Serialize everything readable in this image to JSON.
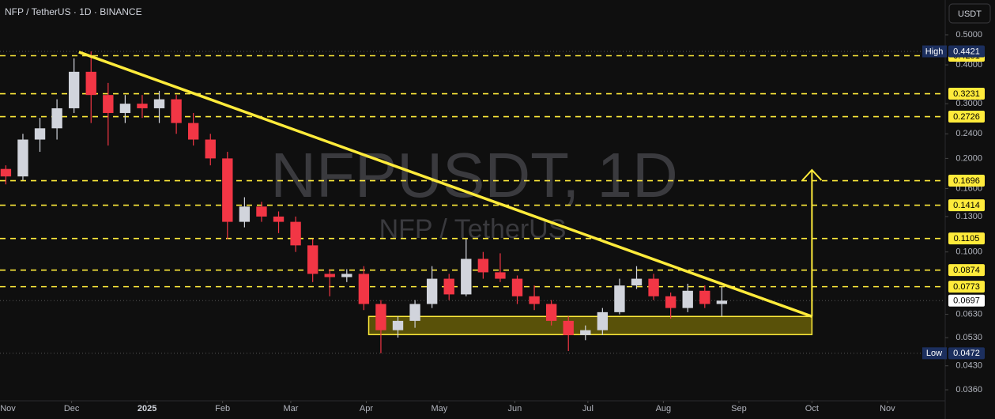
{
  "header": {
    "title": "NFP / TetherUS · 1D · BINANCE",
    "currency": "USDT"
  },
  "watermark": {
    "symbol": "NFPUSDT, 1D",
    "name": "NFP / TetherUS"
  },
  "chart_data": {
    "type": "candlestick",
    "log_scale": true,
    "up_color": "#d1d4dc",
    "down_color": "#f23645",
    "level_color": "#ffeb3b",
    "x": [
      3,
      10,
      17,
      24,
      31,
      38,
      45,
      52,
      59,
      66,
      73,
      80,
      87,
      94,
      101,
      108,
      115,
      122,
      129,
      136,
      143,
      150,
      157,
      164,
      171,
      178,
      185,
      192,
      199,
      206,
      213,
      220,
      227,
      234,
      241,
      248,
      255,
      262,
      269,
      276,
      283,
      290,
      297
    ],
    "open": [
      0.185,
      0.175,
      0.23,
      0.25,
      0.29,
      0.38,
      0.32,
      0.28,
      0.3,
      0.29,
      0.31,
      0.26,
      0.23,
      0.2,
      0.125,
      0.14,
      0.13,
      0.125,
      0.105,
      0.085,
      0.083,
      0.085,
      0.068,
      0.056,
      0.06,
      0.068,
      0.082,
      0.073,
      0.095,
      0.086,
      0.082,
      0.072,
      0.068,
      0.06,
      0.054,
      0.056,
      0.064,
      0.078,
      0.082,
      0.072,
      0.066,
      0.075,
      0.068
    ],
    "high": [
      0.19,
      0.24,
      0.27,
      0.31,
      0.42,
      0.4421,
      0.35,
      0.32,
      0.32,
      0.33,
      0.32,
      0.28,
      0.24,
      0.21,
      0.15,
      0.145,
      0.135,
      0.13,
      0.11,
      0.088,
      0.088,
      0.09,
      0.07,
      0.062,
      0.07,
      0.09,
      0.085,
      0.11,
      0.1,
      0.099,
      0.084,
      0.078,
      0.07,
      0.062,
      0.058,
      0.066,
      0.082,
      0.09,
      0.085,
      0.074,
      0.079,
      0.078,
      0.0773
    ],
    "low": [
      0.165,
      0.17,
      0.21,
      0.23,
      0.28,
      0.26,
      0.22,
      0.26,
      0.27,
      0.26,
      0.24,
      0.22,
      0.19,
      0.11,
      0.12,
      0.125,
      0.115,
      0.1,
      0.08,
      0.072,
      0.08,
      0.065,
      0.0472,
      0.053,
      0.057,
      0.066,
      0.07,
      0.072,
      0.082,
      0.08,
      0.068,
      0.065,
      0.058,
      0.048,
      0.052,
      0.054,
      0.063,
      0.076,
      0.07,
      0.061,
      0.064,
      0.066,
      0.062
    ],
    "close": [
      0.175,
      0.23,
      0.25,
      0.29,
      0.38,
      0.32,
      0.28,
      0.3,
      0.29,
      0.31,
      0.26,
      0.23,
      0.2,
      0.125,
      0.14,
      0.13,
      0.125,
      0.105,
      0.085,
      0.083,
      0.085,
      0.068,
      0.056,
      0.06,
      0.068,
      0.082,
      0.073,
      0.095,
      0.086,
      0.082,
      0.072,
      0.068,
      0.06,
      0.054,
      0.056,
      0.064,
      0.078,
      0.082,
      0.072,
      0.066,
      0.075,
      0.068,
      0.0697
    ],
    "xlim": [
      0.6,
      388.4
    ],
    "ylim": [
      0.0326,
      0.647
    ],
    "xticks": [
      {
        "value": 0,
        "label": "Nov"
      },
      {
        "value": 30,
        "label": "Dec"
      },
      {
        "value": 61,
        "label": "2025"
      },
      {
        "value": 92,
        "label": "Feb"
      },
      {
        "value": 120,
        "label": "Mar"
      },
      {
        "value": 151,
        "label": "Apr"
      },
      {
        "value": 181,
        "label": "May"
      },
      {
        "value": 212,
        "label": "Jun"
      },
      {
        "value": 242,
        "label": "Jul"
      },
      {
        "value": 273,
        "label": "Aug"
      },
      {
        "value": 304,
        "label": "Sep"
      },
      {
        "value": 334,
        "label": "Oct"
      },
      {
        "value": 365,
        "label": "Nov"
      }
    ],
    "yticks": [
      {
        "value": 0.5,
        "label": "0.5000"
      },
      {
        "value": 0.4,
        "label": "0.4000"
      },
      {
        "value": 0.3,
        "label": "0.3000"
      },
      {
        "value": 0.24,
        "label": "0.2400"
      },
      {
        "value": 0.2,
        "label": "0.2000"
      },
      {
        "value": 0.16,
        "label": "0.1600"
      },
      {
        "value": 0.13,
        "label": "0.1300"
      },
      {
        "value": 0.1,
        "label": "0.1000"
      },
      {
        "value": 0.063,
        "label": "0.0630"
      },
      {
        "value": 0.053,
        "label": "0.0530"
      },
      {
        "value": 0.043,
        "label": "0.0430"
      },
      {
        "value": 0.036,
        "label": "0.0360"
      }
    ],
    "levels": [
      0.4281,
      0.3231,
      0.2726,
      0.1696,
      0.1414,
      0.1105,
      0.0874,
      0.0773
    ],
    "high_marker": {
      "label": "High",
      "value": 0.4421
    },
    "low_marker": {
      "label": "Low",
      "value": 0.0472
    },
    "last_price": 0.0697,
    "trendline": {
      "x": [
        33,
        334
      ],
      "y": [
        0.44,
        0.062
      ]
    },
    "zone": {
      "x": [
        152,
        334
      ],
      "y": [
        0.0542,
        0.062
      ]
    },
    "arrow": {
      "x": [
        334,
        334
      ],
      "y": [
        0.062,
        0.1836
      ]
    }
  }
}
